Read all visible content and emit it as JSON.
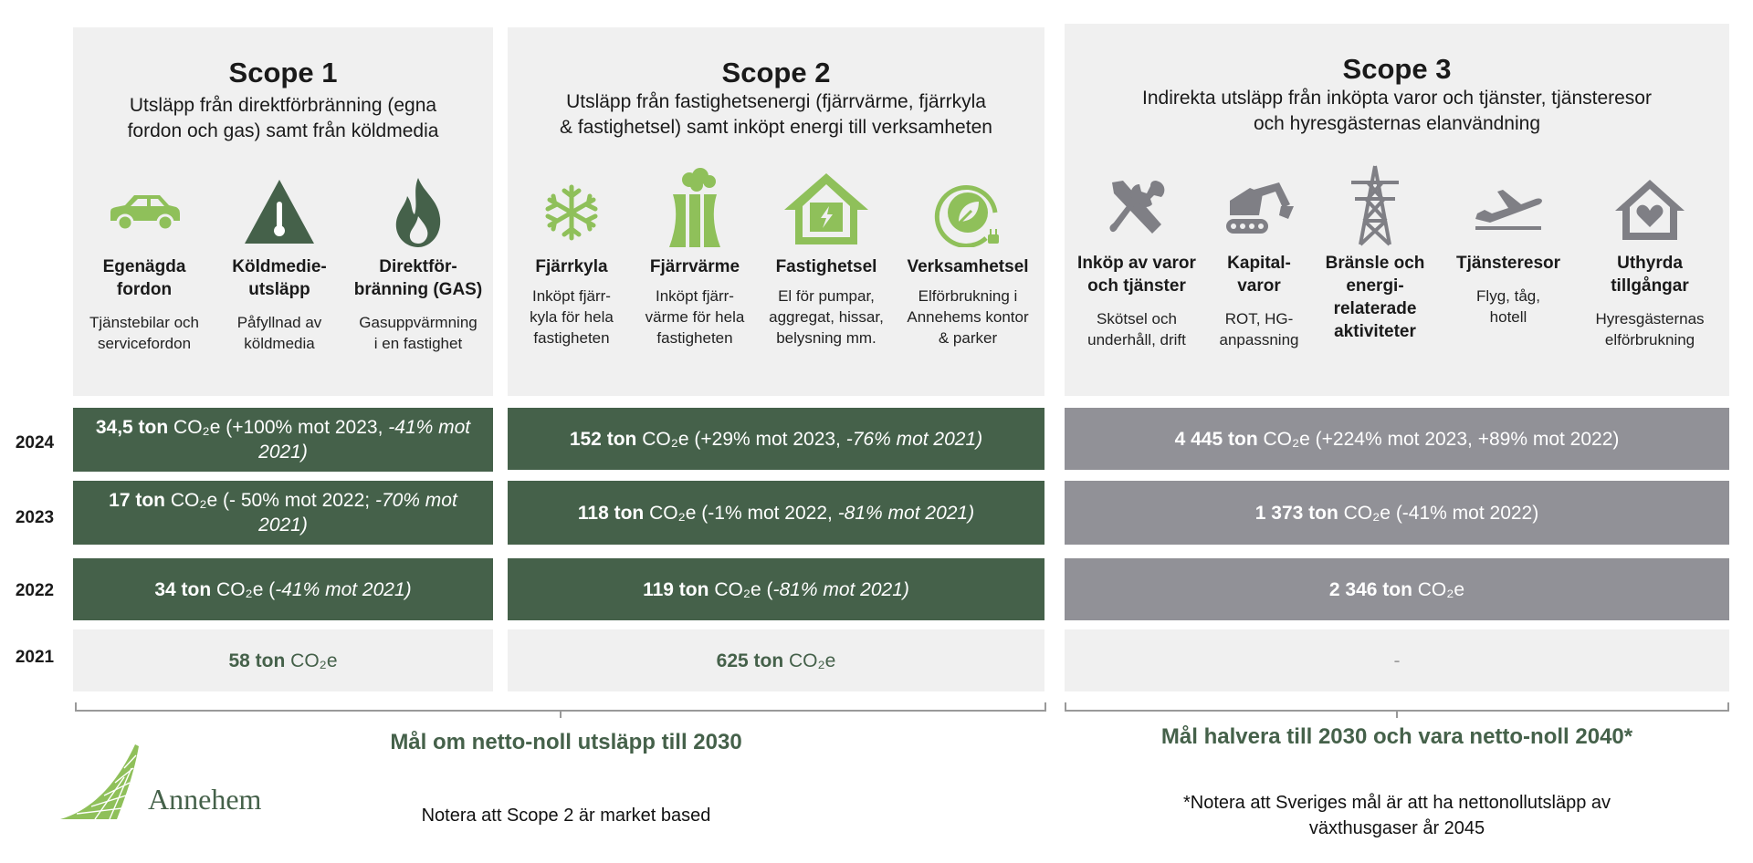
{
  "scopes": [
    {
      "title": "Scope 1",
      "desc": [
        "Utsläpp från direktförbränning (egna",
        "fordon och gas) samt från köldmedia"
      ],
      "categories": [
        {
          "icon": "car-icon",
          "label": [
            "Egenägda",
            "fordon"
          ],
          "sub": [
            "Tjänstebilar och",
            "servicefordon"
          ]
        },
        {
          "icon": "warning-thermometer-icon",
          "label": [
            "Köldmedie-",
            "utsläpp"
          ],
          "sub": [
            "Påfyllnad av",
            "köldmedia"
          ]
        },
        {
          "icon": "flame-icon",
          "label": [
            "Direktför-",
            "bränning (GAS)"
          ],
          "sub": [
            "Gasuppvärmning",
            "i en fastighet"
          ]
        }
      ],
      "rows": [
        {
          "year": "2024",
          "amount": "34,5 ton",
          "unit": "CO₂e",
          "detail": " (+100% mot 2023,",
          "italic": "-41% mot 2021)"
        },
        {
          "year": "2023",
          "amount": "17 ton",
          "unit": "CO₂e",
          "detail": " (- 50% mot 2022; ",
          "italic": "-70% mot 2021)"
        },
        {
          "year": "2022",
          "amount": "34 ton",
          "unit": "CO₂e",
          "detail": " (",
          "italic": "-41% mot 2021)"
        },
        {
          "year": "2021",
          "amount": "58 ton",
          "unit": "CO₂e",
          "detail": "",
          "italic": ""
        }
      ]
    },
    {
      "title": "Scope 2",
      "desc": [
        "Utsläpp från fastighetsenergi (fjärrvärme, fjärrkyla",
        "& fastighetsel) samt inköpt energi till verksamheten"
      ],
      "categories": [
        {
          "icon": "snowflake-icon",
          "label": [
            "Fjärrkyla"
          ],
          "sub": [
            "Inköpt fjärr-",
            "kyla för hela",
            "fastigheten"
          ]
        },
        {
          "icon": "power-plant-icon",
          "label": [
            "Fjärrvärme"
          ],
          "sub": [
            "Inköpt fjärr-",
            "värme för hela",
            "fastigheten"
          ]
        },
        {
          "icon": "house-lightning-icon",
          "label": [
            "Fastighetsel"
          ],
          "sub": [
            "El för pumpar,",
            "aggregat, hissar,",
            "belysning mm."
          ]
        },
        {
          "icon": "leaf-plug-icon",
          "label": [
            "Verksamhetsel"
          ],
          "sub": [
            "Elförbrukning i",
            "Annehems kontor",
            "& parker"
          ]
        }
      ],
      "rows": [
        {
          "year": "2024",
          "amount": "152 ton",
          "unit": "CO₂e",
          "detail": " (+29% mot 2023, ",
          "italic": "-76% mot 2021)"
        },
        {
          "year": "2023",
          "amount": "118 ton",
          "unit": "CO₂e",
          "detail": " (-1% mot 2022, ",
          "italic": "-81% mot 2021)"
        },
        {
          "year": "2022",
          "amount": "119 ton",
          "unit": "CO₂e",
          "detail": " (",
          "italic": "-81% mot 2021)"
        },
        {
          "year": "2021",
          "amount": "625 ton",
          "unit": "CO₂e",
          "detail": "",
          "italic": ""
        }
      ]
    },
    {
      "title": "Scope 3",
      "desc": [
        "Indirekta utsläpp från inköpta varor och tjänster, tjänsteresor",
        "och hyresgästernas elanvändning"
      ],
      "categories": [
        {
          "icon": "tools-icon",
          "label": [
            "Inköp av varor",
            "och tjänster"
          ],
          "sub": [
            "Skötsel och",
            "underhåll, drift"
          ]
        },
        {
          "icon": "excavator-icon",
          "label": [
            "Kapital-",
            "varor"
          ],
          "sub": [
            "ROT, HG-",
            "anpassning"
          ]
        },
        {
          "icon": "power-tower-icon",
          "label": [
            "Bränsle och",
            "energi-",
            "relaterade",
            "aktiviteter"
          ],
          "sub": []
        },
        {
          "icon": "airplane-icon",
          "label": [
            "Tjänsteresor"
          ],
          "sub": [
            "Flyg, tåg,",
            "hotell"
          ]
        },
        {
          "icon": "house-heart-icon",
          "label": [
            "Uthyrda",
            "tillgångar"
          ],
          "sub": [
            "Hyresgästernas",
            "elförbrukning"
          ]
        }
      ],
      "rows": [
        {
          "year": "2024",
          "amount": "4 445 ton",
          "unit": "CO₂e",
          "detail": " (+224% mot 2023, +89% mot 2022)",
          "italic": ""
        },
        {
          "year": "2023",
          "amount": "1 373 ton",
          "unit": "CO₂e",
          "detail": " (-41% mot 2022)",
          "italic": ""
        },
        {
          "year": "2022",
          "amount": "2 346 ton",
          "unit": "CO₂e",
          "detail": "",
          "italic": ""
        },
        {
          "year": "2021",
          "amount": "",
          "unit": "",
          "detail": "-",
          "italic": ""
        }
      ]
    }
  ],
  "years": [
    "2024",
    "2023",
    "2022",
    "2021"
  ],
  "goals": {
    "scope12": "Mål om netto-noll utsläpp till 2030",
    "scope3": "Mål halvera till 2030 och vara netto-noll 2040*"
  },
  "notes": {
    "scope2": "Notera att Scope 2 är market based",
    "scope3": [
      "*Notera att Sveriges mål är att ha nettonollutsläpp av",
      "växthusgaser år 2045"
    ]
  },
  "logo": {
    "text": "Annehem"
  },
  "colors": {
    "green": "#45614a",
    "light_green": "#8fc05a",
    "grey_cell": "#919197",
    "panel": "#f0f0f0",
    "icon_grey": "#7f7f85"
  }
}
